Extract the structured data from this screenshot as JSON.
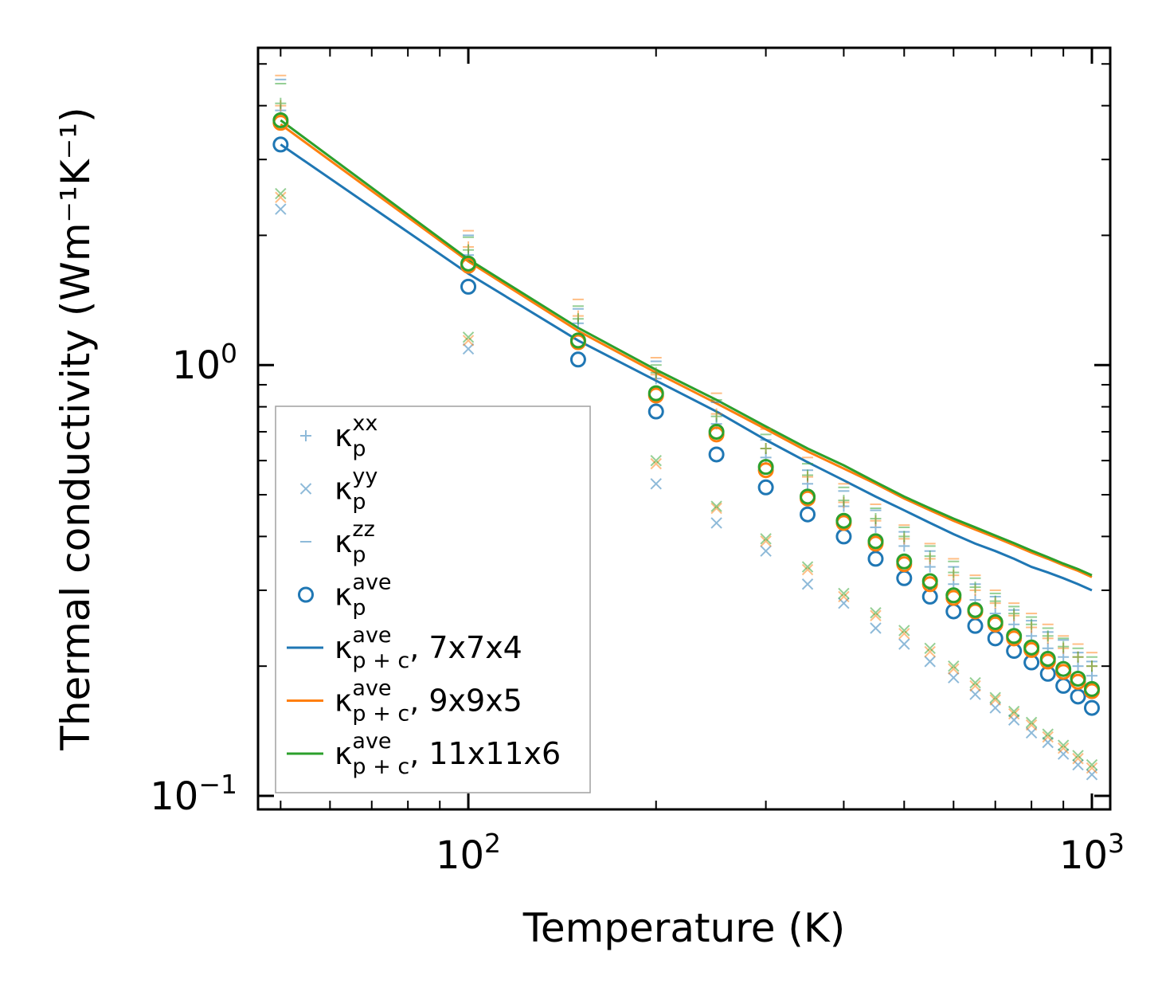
{
  "chart_data": {
    "type": "scatter",
    "title": "",
    "xlabel": "Temperature (K)",
    "ylabel": "Thermal conductivity (Wm⁻¹K⁻¹)",
    "xscale": "log",
    "yscale": "log",
    "xlim": [
      46,
      1070
    ],
    "ylim": [
      0.093,
      5.45
    ],
    "x_ticks": [
      {
        "value": 100,
        "base": "10",
        "exp": "2"
      },
      {
        "value": 1000,
        "base": "10",
        "exp": "3"
      }
    ],
    "y_ticks": [
      {
        "value": 0.1,
        "base": "10",
        "exp": "−1"
      },
      {
        "value": 1.0,
        "base": "10",
        "exp": "0"
      }
    ],
    "legend_position": "lower-left",
    "colors": {
      "blue": "#1f77b4",
      "orange": "#ff7f0e",
      "green": "#2ca02c"
    },
    "legend": [
      {
        "marker": "plus",
        "main": "κ",
        "sub": "p",
        "sup": "xx",
        "suffix": ""
      },
      {
        "marker": "cross",
        "main": "κ",
        "sub": "p",
        "sup": "yy",
        "suffix": ""
      },
      {
        "marker": "dash",
        "main": "κ",
        "sub": "p",
        "sup": "zz",
        "suffix": ""
      },
      {
        "marker": "circle",
        "main": "κ",
        "sub": "p",
        "sup": "ave",
        "suffix": ""
      },
      {
        "marker": "line",
        "color": "#1f77b4",
        "main": "κ",
        "sub": "p + c",
        "sup": "ave",
        "suffix": ", 7x7x4"
      },
      {
        "marker": "line",
        "color": "#ff7f0e",
        "main": "κ",
        "sub": "p + c",
        "sup": "ave",
        "suffix": ", 9x9x5"
      },
      {
        "marker": "line",
        "color": "#2ca02c",
        "main": "κ",
        "sub": "p + c",
        "sup": "ave",
        "suffix": ", 11x11x6"
      }
    ],
    "temperatures": [
      50,
      100,
      150,
      200,
      250,
      300,
      350,
      400,
      450,
      500,
      550,
      600,
      650,
      700,
      750,
      800,
      850,
      900,
      950,
      1000
    ],
    "series": [
      {
        "name": "7x7x4",
        "color": "#1f77b4",
        "kappa_p_xx": [
          3.9,
          1.8,
          1.25,
          0.93,
          0.73,
          0.61,
          0.53,
          0.47,
          0.42,
          0.38,
          0.34,
          0.31,
          0.285,
          0.265,
          0.25,
          0.235,
          0.22,
          0.21,
          0.2,
          0.19
        ],
        "kappa_p_yy": [
          2.3,
          1.09,
          0.72,
          0.53,
          0.43,
          0.37,
          0.31,
          0.28,
          0.245,
          0.225,
          0.205,
          0.188,
          0.172,
          0.16,
          0.15,
          0.14,
          0.133,
          0.125,
          0.118,
          0.112
        ],
        "kappa_p_zz": [
          4.6,
          2.0,
          1.35,
          1.02,
          0.82,
          0.67,
          0.57,
          0.51,
          0.46,
          0.41,
          0.37,
          0.34,
          0.31,
          0.29,
          0.27,
          0.255,
          0.24,
          0.23,
          0.215,
          0.205
        ],
        "kappa_p_ave": [
          3.25,
          1.52,
          1.03,
          0.78,
          0.62,
          0.52,
          0.45,
          0.4,
          0.355,
          0.32,
          0.29,
          0.268,
          0.248,
          0.232,
          0.217,
          0.204,
          0.192,
          0.18,
          0.17,
          0.16
        ],
        "kappa_pc_ave": [
          3.25,
          1.63,
          1.14,
          0.92,
          0.78,
          0.67,
          0.595,
          0.54,
          0.495,
          0.46,
          0.43,
          0.405,
          0.385,
          0.37,
          0.355,
          0.34,
          0.33,
          0.32,
          0.31,
          0.3
        ]
      },
      {
        "name": "9x9x5",
        "color": "#ff7f0e",
        "kappa_p_xx": [
          4.0,
          1.88,
          1.3,
          0.95,
          0.77,
          0.64,
          0.55,
          0.48,
          0.435,
          0.395,
          0.355,
          0.325,
          0.3,
          0.28,
          0.262,
          0.246,
          0.232,
          0.22,
          0.21,
          0.2
        ],
        "kappa_p_yy": [
          2.45,
          1.14,
          0.77,
          0.59,
          0.465,
          0.39,
          0.335,
          0.29,
          0.262,
          0.238,
          0.216,
          0.197,
          0.18,
          0.167,
          0.155,
          0.146,
          0.137,
          0.129,
          0.122,
          0.116
        ],
        "kappa_p_zz": [
          4.7,
          2.05,
          1.42,
          1.04,
          0.86,
          0.71,
          0.61,
          0.53,
          0.475,
          0.425,
          0.385,
          0.355,
          0.325,
          0.3,
          0.28,
          0.265,
          0.25,
          0.235,
          0.225,
          0.215
        ],
        "kappa_p_ave": [
          3.65,
          1.7,
          1.13,
          0.85,
          0.69,
          0.57,
          0.49,
          0.43,
          0.385,
          0.345,
          0.31,
          0.288,
          0.268,
          0.25,
          0.232,
          0.218,
          0.205,
          0.194,
          0.184,
          0.175
        ],
        "kappa_pc_ave": [
          3.62,
          1.74,
          1.2,
          0.96,
          0.815,
          0.71,
          0.63,
          0.575,
          0.53,
          0.49,
          0.46,
          0.435,
          0.415,
          0.398,
          0.382,
          0.367,
          0.355,
          0.343,
          0.333,
          0.322
        ]
      },
      {
        "name": "11x11x6",
        "color": "#2ca02c",
        "kappa_p_xx": [
          4.05,
          1.85,
          1.28,
          0.96,
          0.76,
          0.64,
          0.555,
          0.485,
          0.44,
          0.4,
          0.36,
          0.33,
          0.305,
          0.283,
          0.265,
          0.25,
          0.235,
          0.222,
          0.21,
          0.2
        ],
        "kappa_p_yy": [
          2.5,
          1.16,
          0.78,
          0.6,
          0.47,
          0.395,
          0.34,
          0.295,
          0.266,
          0.242,
          0.22,
          0.2,
          0.183,
          0.169,
          0.157,
          0.148,
          0.139,
          0.131,
          0.124,
          0.118
        ],
        "kappa_p_zz": [
          4.5,
          1.98,
          1.37,
          1.0,
          0.83,
          0.69,
          0.59,
          0.52,
          0.465,
          0.42,
          0.38,
          0.35,
          0.32,
          0.295,
          0.275,
          0.26,
          0.245,
          0.232,
          0.22,
          0.21
        ],
        "kappa_p_ave": [
          3.7,
          1.72,
          1.14,
          0.86,
          0.7,
          0.58,
          0.495,
          0.435,
          0.39,
          0.35,
          0.315,
          0.292,
          0.27,
          0.253,
          0.235,
          0.221,
          0.208,
          0.197,
          0.187,
          0.177
        ],
        "kappa_pc_ave": [
          3.7,
          1.76,
          1.22,
          0.975,
          0.83,
          0.72,
          0.64,
          0.585,
          0.535,
          0.495,
          0.465,
          0.44,
          0.42,
          0.402,
          0.386,
          0.371,
          0.358,
          0.346,
          0.336,
          0.325
        ]
      }
    ]
  }
}
